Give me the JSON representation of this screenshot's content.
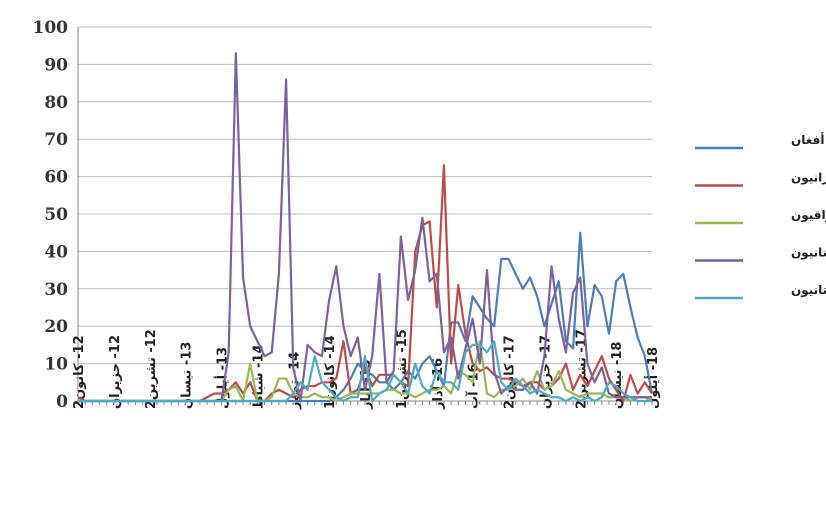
{
  "chart_data": {
    "type": "line",
    "title": "",
    "xlabel": "",
    "ylabel": "",
    "ylim": [
      0,
      100
    ],
    "yticks": [
      "0",
      "10",
      "20",
      "30",
      "40",
      "50",
      "60",
      "70",
      "80",
      "90",
      "100"
    ],
    "grid": true,
    "legend_position": "right",
    "x_tick_labels": [
      "12- كانون2",
      "12- حزيران",
      "12- تشرين2",
      "13- نيسان",
      "13- أيلول",
      "14- شباط",
      "14- تموز",
      "14- كانون1",
      "15- أيار",
      "15- تشرين1",
      "16- آذار",
      "16- آب",
      "17- كانون2",
      "17- حزيران",
      "17- تشرين2",
      "18- نيسان",
      "18- أيلول"
    ],
    "x_count": 81,
    "series": [
      {
        "name": "أفغان",
        "color": "#4a7ebb",
        "values": [
          0,
          0,
          0,
          0,
          0,
          0,
          0,
          0,
          0,
          0,
          0,
          0,
          0,
          0,
          0,
          0,
          0,
          0,
          0,
          0,
          0,
          0,
          0,
          0,
          0,
          0,
          0,
          0,
          0,
          0,
          0,
          0,
          0,
          0,
          0,
          0,
          1,
          3,
          6,
          10,
          8,
          7,
          5,
          5,
          3,
          5,
          8,
          6,
          10,
          12,
          8,
          4,
          21,
          21,
          16,
          28,
          25,
          22,
          20,
          38,
          38,
          34,
          30,
          33,
          28,
          20,
          26,
          32,
          16,
          14,
          45,
          20,
          31,
          28,
          18,
          32,
          34,
          25,
          17,
          12,
          2
        ]
      },
      {
        "name": "إيرانيون",
        "color": "#be4b48",
        "values": [
          1,
          0,
          0,
          0,
          0,
          0,
          0,
          0,
          0,
          0,
          0,
          0,
          0,
          0,
          0,
          0,
          0,
          0,
          1,
          2,
          2,
          3,
          5,
          2,
          5,
          0,
          0,
          2,
          3,
          2,
          1,
          3,
          4,
          4,
          5,
          5,
          6,
          16,
          2,
          3,
          9,
          4,
          7,
          7,
          7,
          5,
          4,
          40,
          47,
          48,
          25,
          63,
          10,
          31,
          18,
          10,
          8,
          9,
          7,
          6,
          6,
          5,
          4,
          5,
          5,
          3,
          4,
          6,
          10,
          3,
          7,
          4,
          8,
          12,
          6,
          3,
          0,
          7,
          2,
          5,
          2
        ]
      },
      {
        "name": "عراقيون",
        "color": "#98b954",
        "values": [
          0,
          0,
          0,
          0,
          0,
          0,
          0,
          0,
          0,
          0,
          0,
          0,
          0,
          0,
          0,
          0,
          0,
          0,
          0,
          0,
          0,
          3,
          4,
          0,
          10,
          0,
          0,
          1,
          6,
          6,
          2,
          1,
          1,
          2,
          1,
          1,
          0,
          1,
          2,
          2,
          2,
          2,
          2,
          3,
          3,
          2,
          2,
          1,
          2,
          3,
          3,
          4,
          2,
          8,
          7,
          5,
          16,
          2,
          1,
          3,
          3,
          4,
          6,
          3,
          8,
          3,
          4,
          8,
          3,
          2,
          1,
          2,
          2,
          2,
          1,
          1,
          1,
          0,
          1,
          1,
          0
        ]
      },
      {
        "name": "لبنانيون",
        "color": "#7d60a0",
        "values": [
          0,
          0,
          0,
          0,
          0,
          0,
          0,
          0,
          0,
          0,
          0,
          0,
          0,
          0,
          0,
          0,
          0,
          0,
          0,
          0,
          0,
          13,
          93,
          33,
          20,
          16,
          12,
          13,
          34,
          86,
          9,
          0,
          15,
          13,
          12,
          27,
          36,
          20,
          12,
          17,
          3,
          12,
          34,
          5,
          8,
          44,
          27,
          35,
          49,
          32,
          34,
          13,
          17,
          6,
          14,
          22,
          10,
          35,
          8,
          2,
          4,
          3,
          3,
          5,
          2,
          12,
          36,
          22,
          13,
          29,
          33,
          10,
          5,
          9,
          2,
          1,
          1,
          1,
          1,
          1,
          1
        ]
      },
      {
        "name": "باكستانيون",
        "color": "#4bacc6",
        "values": [
          0,
          0,
          0,
          0,
          0,
          0,
          0,
          0,
          0,
          0,
          0,
          0,
          0,
          0,
          0,
          0,
          0,
          0,
          0,
          0,
          0,
          0,
          0,
          0,
          0,
          0,
          0,
          0,
          0,
          0,
          2,
          5,
          3,
          12,
          5,
          3,
          1,
          0,
          1,
          1,
          12,
          0,
          2,
          3,
          7,
          5,
          2,
          10,
          4,
          2,
          8,
          5,
          5,
          3,
          13,
          15,
          15,
          13,
          16,
          5,
          3,
          6,
          4,
          2,
          3,
          2,
          1,
          1,
          0,
          1,
          0,
          1,
          0,
          1,
          5,
          4,
          2,
          1,
          0,
          0,
          0
        ]
      }
    ]
  }
}
